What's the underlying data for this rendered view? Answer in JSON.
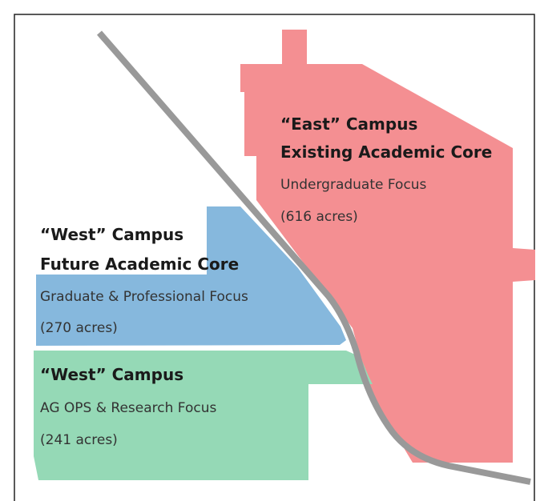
{
  "regions": [
    {
      "title": [
        "“East” Campus",
        "Existing Academic Core"
      ],
      "focus": "Undergraduate Focus",
      "area": "(616 acres)"
    },
    {
      "title": [
        "“West” Campus",
        "Future Academic Core"
      ],
      "focus": "Graduate & Professional Focus",
      "area": "(270 acres)"
    },
    {
      "title": [
        "“West” Campus"
      ],
      "focus": "AG OPS & Research Focus",
      "area": "(241 acres)"
    }
  ]
}
